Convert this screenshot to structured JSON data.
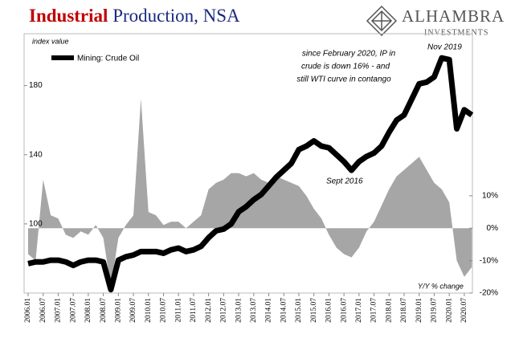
{
  "chart_data": {
    "type": "line",
    "title_parts": [
      "Industrial",
      "Production, NSA"
    ],
    "title_colors": [
      "#c00000",
      "#1a2a80"
    ],
    "logo": [
      "ALHAMBRA",
      "INVESTMENTS"
    ],
    "ylabel": "index value",
    "y2label": "Y/Y % change",
    "annotations": {
      "note": [
        "since February 2020, IP in",
        "crude is down 16% - and",
        "still WTI curve in contango"
      ],
      "peak": "Nov 2019",
      "trough": "Sept 2016"
    },
    "categories": [
      "2006.01",
      null,
      "2006.07",
      null,
      "2007.01",
      null,
      "2007.07",
      null,
      "2008.01",
      null,
      "2008.07",
      null,
      "2009.01",
      null,
      "2009.07",
      null,
      "2010.01",
      null,
      "2010.07",
      null,
      "2011.01",
      null,
      "2011.07",
      null,
      "2012.01",
      null,
      "2012.07",
      null,
      "2013.01",
      null,
      "2013.07",
      null,
      "2014.01",
      null,
      "2014.07",
      null,
      "2015.01",
      null,
      "2015.07",
      null,
      "2016.01",
      null,
      "2016.07",
      null,
      "2017.01",
      null,
      "2017.07",
      null,
      "2018.01",
      null,
      "2018.07",
      null,
      "2019.01",
      null,
      "2019.07",
      null,
      "2020.01",
      null,
      "2020.07",
      null
    ],
    "series": [
      {
        "color": "#a6a6a6",
        "axis": "y2",
        "kind": "area",
        "values": [
          -8,
          -10,
          15,
          4,
          3,
          -2,
          -3,
          -1,
          -2,
          1,
          -3,
          -18,
          -3,
          1,
          4,
          40,
          5,
          4,
          1,
          2,
          2,
          0,
          2,
          4,
          12,
          14,
          15,
          17,
          17,
          16,
          17,
          15,
          14,
          16,
          15,
          14,
          13,
          10,
          6,
          3,
          -2,
          -6,
          -8,
          -9,
          -6,
          -1,
          2,
          7,
          12,
          16,
          18,
          20,
          22,
          18,
          14,
          12,
          8,
          -10,
          -15,
          -12
        ]
      },
      {
        "name": "Mining: Crude Oil",
        "color": "#000000",
        "kind": "line",
        "values": [
          77,
          78,
          78,
          79,
          79,
          78,
          76,
          78,
          79,
          79,
          78,
          62,
          79,
          81,
          82,
          84,
          84,
          84,
          83,
          85,
          86,
          84,
          85,
          87,
          92,
          96,
          97,
          100,
          107,
          110,
          114,
          117,
          122,
          127,
          131,
          135,
          143,
          145,
          148,
          145,
          144,
          140,
          136,
          131,
          136,
          139,
          141,
          145,
          153,
          160,
          163,
          172,
          181,
          182,
          185,
          196,
          195,
          155,
          166,
          163
        ]
      }
    ],
    "ylim": [
      60,
      210
    ],
    "yticks": [
      100,
      140,
      180
    ],
    "y2lim": [
      -20,
      60
    ],
    "y2ticks": [
      {
        "value": 10,
        "label": "10%"
      },
      {
        "value": 0,
        "label": "0%"
      },
      {
        "value": -10,
        "label": "-10%"
      },
      {
        "value": -20,
        "label": "-20%"
      }
    ],
    "grid": false
  }
}
